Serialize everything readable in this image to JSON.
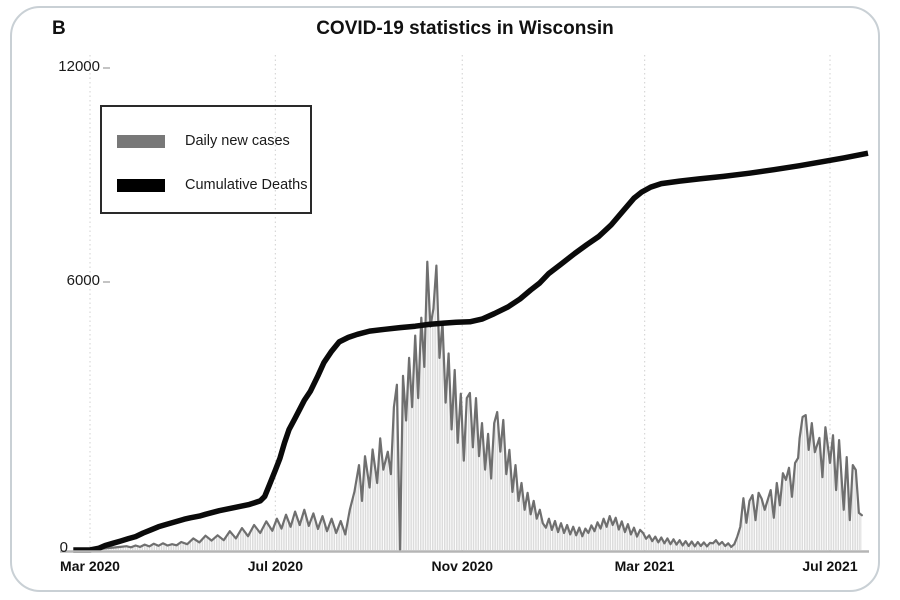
{
  "panel": {
    "label": "B"
  },
  "chart_data": {
    "type": "combo-line-area",
    "title": "COVID-19 statistics in Wisconsin",
    "x_unit": "days since 2020-03-01",
    "x_ticks": [
      {
        "label": "Mar 2020",
        "day": 0
      },
      {
        "label": "Jul 2020",
        "day": 122
      },
      {
        "label": "Nov 2020",
        "day": 245
      },
      {
        "label": "Mar 2021",
        "day": 365
      },
      {
        "label": "Jul 2021",
        "day": 487
      }
    ],
    "y_ticks": [
      {
        "label": "0",
        "value": 0
      },
      {
        "label": "6000",
        "value": 6000
      },
      {
        "label": "12000",
        "value": 12000
      }
    ],
    "ylim": [
      0,
      12600
    ],
    "grid": "vertical dotted lines at x ticks",
    "legend_position": "upper-left",
    "colors": {
      "daily_cases_line": "#6f6f6f",
      "daily_cases_fill": "#dcdcdc",
      "cumulative_deaths": "#0a0a0a",
      "gridline": "#d8d8d8",
      "axis_line": "#b5b5b5",
      "legend_swatch_cases": "#787878",
      "legend_swatch_deaths": "#000000"
    },
    "series": [
      {
        "name": "Daily new cases",
        "type": "area-line",
        "points": [
          [
            -8,
            0
          ],
          [
            -4,
            5
          ],
          [
            0,
            10
          ],
          [
            4,
            20
          ],
          [
            8,
            30
          ],
          [
            12,
            45
          ],
          [
            16,
            55
          ],
          [
            20,
            70
          ],
          [
            24,
            85
          ],
          [
            27,
            60
          ],
          [
            30,
            100
          ],
          [
            33,
            70
          ],
          [
            36,
            120
          ],
          [
            39,
            80
          ],
          [
            42,
            140
          ],
          [
            45,
            95
          ],
          [
            48,
            150
          ],
          [
            51,
            100
          ],
          [
            54,
            130
          ],
          [
            57,
            105
          ],
          [
            60,
            180
          ],
          [
            64,
            130
          ],
          [
            68,
            260
          ],
          [
            72,
            170
          ],
          [
            76,
            320
          ],
          [
            80,
            210
          ],
          [
            84,
            330
          ],
          [
            88,
            220
          ],
          [
            92,
            420
          ],
          [
            96,
            260
          ],
          [
            100,
            490
          ],
          [
            104,
            310
          ],
          [
            108,
            560
          ],
          [
            112,
            380
          ],
          [
            116,
            640
          ],
          [
            120,
            430
          ],
          [
            123,
            700
          ],
          [
            126,
            480
          ],
          [
            129,
            790
          ],
          [
            132,
            520
          ],
          [
            135,
            860
          ],
          [
            138,
            560
          ],
          [
            141,
            900
          ],
          [
            144,
            540
          ],
          [
            147,
            820
          ],
          [
            150,
            470
          ],
          [
            153,
            760
          ],
          [
            156,
            420
          ],
          [
            159,
            700
          ],
          [
            162,
            380
          ],
          [
            165,
            650
          ],
          [
            168,
            350
          ],
          [
            171,
            900
          ],
          [
            174,
            1300
          ],
          [
            177,
            1900
          ],
          [
            179,
            1100
          ],
          [
            181,
            2100
          ],
          [
            184,
            1400
          ],
          [
            186,
            2250
          ],
          [
            189,
            1500
          ],
          [
            191,
            2500
          ],
          [
            193,
            1800
          ],
          [
            196,
            2200
          ],
          [
            198,
            1700
          ],
          [
            200,
            3200
          ],
          [
            202,
            3700
          ],
          [
            204,
            0
          ],
          [
            206,
            3900
          ],
          [
            208,
            2900
          ],
          [
            210,
            4300
          ],
          [
            212,
            3200
          ],
          [
            214,
            4800
          ],
          [
            216,
            3400
          ],
          [
            218,
            5200
          ],
          [
            220,
            4100
          ],
          [
            222,
            6570
          ],
          [
            224,
            5000
          ],
          [
            226,
            5400
          ],
          [
            228,
            6460
          ],
          [
            230,
            4300
          ],
          [
            232,
            5100
          ],
          [
            234,
            3300
          ],
          [
            236,
            4400
          ],
          [
            238,
            2700
          ],
          [
            240,
            4030
          ],
          [
            242,
            2400
          ],
          [
            244,
            3500
          ],
          [
            246,
            2000
          ],
          [
            248,
            3400
          ],
          [
            250,
            3515
          ],
          [
            252,
            2300
          ],
          [
            254,
            3400
          ],
          [
            256,
            2100
          ],
          [
            258,
            2840
          ],
          [
            260,
            1800
          ],
          [
            262,
            2600
          ],
          [
            264,
            1600
          ],
          [
            266,
            2840
          ],
          [
            268,
            3090
          ],
          [
            270,
            2200
          ],
          [
            272,
            2910
          ],
          [
            274,
            1700
          ],
          [
            276,
            2240
          ],
          [
            278,
            1300
          ],
          [
            280,
            1900
          ],
          [
            282,
            1100
          ],
          [
            284,
            1500
          ],
          [
            286,
            900
          ],
          [
            288,
            1280
          ],
          [
            290,
            800
          ],
          [
            292,
            1100
          ],
          [
            294,
            700
          ],
          [
            296,
            900
          ],
          [
            298,
            600
          ],
          [
            300,
            500
          ],
          [
            302,
            700
          ],
          [
            304,
            450
          ],
          [
            306,
            650
          ],
          [
            308,
            400
          ],
          [
            310,
            600
          ],
          [
            312,
            380
          ],
          [
            314,
            560
          ],
          [
            316,
            350
          ],
          [
            318,
            520
          ],
          [
            320,
            330
          ],
          [
            322,
            500
          ],
          [
            324,
            310
          ],
          [
            326,
            480
          ],
          [
            328,
            380
          ],
          [
            330,
            550
          ],
          [
            332,
            420
          ],
          [
            334,
            620
          ],
          [
            336,
            480
          ],
          [
            338,
            700
          ],
          [
            340,
            520
          ],
          [
            342,
            760
          ],
          [
            344,
            560
          ],
          [
            346,
            720
          ],
          [
            348,
            460
          ],
          [
            350,
            640
          ],
          [
            352,
            400
          ],
          [
            354,
            580
          ],
          [
            356,
            350
          ],
          [
            358,
            500
          ],
          [
            360,
            300
          ],
          [
            362,
            450
          ],
          [
            364,
            380
          ],
          [
            366,
            250
          ],
          [
            368,
            330
          ],
          [
            370,
            200
          ],
          [
            372,
            300
          ],
          [
            374,
            170
          ],
          [
            376,
            280
          ],
          [
            378,
            150
          ],
          [
            380,
            260
          ],
          [
            382,
            130
          ],
          [
            384,
            240
          ],
          [
            386,
            120
          ],
          [
            388,
            220
          ],
          [
            390,
            100
          ],
          [
            392,
            200
          ],
          [
            394,
            90
          ],
          [
            396,
            190
          ],
          [
            398,
            80
          ],
          [
            400,
            180
          ],
          [
            402,
            90
          ],
          [
            404,
            170
          ],
          [
            406,
            80
          ],
          [
            408,
            160
          ],
          [
            410,
            150
          ],
          [
            412,
            220
          ],
          [
            414,
            120
          ],
          [
            416,
            180
          ],
          [
            418,
            90
          ],
          [
            420,
            150
          ],
          [
            422,
            70
          ],
          [
            424,
            130
          ],
          [
            426,
            300
          ],
          [
            428,
            520
          ],
          [
            430,
            1160
          ],
          [
            432,
            610
          ],
          [
            434,
            1100
          ],
          [
            436,
            1230
          ],
          [
            438,
            670
          ],
          [
            440,
            1280
          ],
          [
            442,
            1150
          ],
          [
            444,
            900
          ],
          [
            446,
            1120
          ],
          [
            448,
            1340
          ],
          [
            450,
            720
          ],
          [
            452,
            1500
          ],
          [
            454,
            1000
          ],
          [
            456,
            1720
          ],
          [
            458,
            1570
          ],
          [
            460,
            1840
          ],
          [
            462,
            1190
          ],
          [
            464,
            1950
          ],
          [
            466,
            2060
          ],
          [
            467,
            2500
          ],
          [
            469,
            2980
          ],
          [
            471,
            3020
          ],
          [
            473,
            2240
          ],
          [
            475,
            2840
          ],
          [
            477,
            2190
          ],
          [
            480,
            2510
          ],
          [
            482,
            1630
          ],
          [
            484,
            2750
          ],
          [
            487,
            1950
          ],
          [
            489,
            2570
          ],
          [
            491,
            1340
          ],
          [
            493,
            2460
          ],
          [
            496,
            900
          ],
          [
            498,
            2080
          ],
          [
            500,
            670
          ],
          [
            502,
            1900
          ],
          [
            504,
            1790
          ],
          [
            506,
            830
          ],
          [
            508,
            780
          ]
        ]
      },
      {
        "name": "Cumulative Deaths",
        "type": "line",
        "points": [
          [
            -11,
            0
          ],
          [
            0,
            0
          ],
          [
            6,
            40
          ],
          [
            10,
            100
          ],
          [
            15,
            150
          ],
          [
            20,
            200
          ],
          [
            25,
            250
          ],
          [
            30,
            300
          ],
          [
            35,
            380
          ],
          [
            40,
            450
          ],
          [
            45,
            520
          ],
          [
            50,
            570
          ],
          [
            56,
            630
          ],
          [
            62,
            690
          ],
          [
            66,
            720
          ],
          [
            72,
            760
          ],
          [
            76,
            800
          ],
          [
            85,
            880
          ],
          [
            95,
            950
          ],
          [
            105,
            1020
          ],
          [
            112,
            1100
          ],
          [
            115,
            1200
          ],
          [
            118,
            1450
          ],
          [
            122,
            1790
          ],
          [
            125,
            2050
          ],
          [
            128,
            2400
          ],
          [
            131,
            2700
          ],
          [
            135,
            2950
          ],
          [
            138,
            3150
          ],
          [
            141,
            3350
          ],
          [
            145,
            3550
          ],
          [
            150,
            3900
          ],
          [
            154,
            4200
          ],
          [
            159,
            4450
          ],
          [
            164,
            4660
          ],
          [
            170,
            4760
          ],
          [
            176,
            4830
          ],
          [
            184,
            4900
          ],
          [
            194,
            4940
          ],
          [
            204,
            4980
          ],
          [
            214,
            5010
          ],
          [
            223,
            5050
          ],
          [
            233,
            5080
          ],
          [
            241,
            5100
          ],
          [
            250,
            5110
          ],
          [
            258,
            5170
          ],
          [
            266,
            5290
          ],
          [
            275,
            5440
          ],
          [
            283,
            5620
          ],
          [
            290,
            5820
          ],
          [
            296,
            5980
          ],
          [
            302,
            6240
          ],
          [
            310,
            6500
          ],
          [
            319,
            6800
          ],
          [
            327,
            7050
          ],
          [
            335,
            7280
          ],
          [
            343,
            7600
          ],
          [
            351,
            8000
          ],
          [
            358,
            8350
          ],
          [
            363,
            8520
          ],
          [
            369,
            8660
          ],
          [
            376,
            8760
          ],
          [
            388,
            8830
          ],
          [
            401,
            8890
          ],
          [
            417,
            8960
          ],
          [
            434,
            9050
          ],
          [
            450,
            9150
          ],
          [
            467,
            9260
          ],
          [
            483,
            9380
          ],
          [
            496,
            9480
          ],
          [
            512,
            9610
          ]
        ]
      }
    ]
  }
}
